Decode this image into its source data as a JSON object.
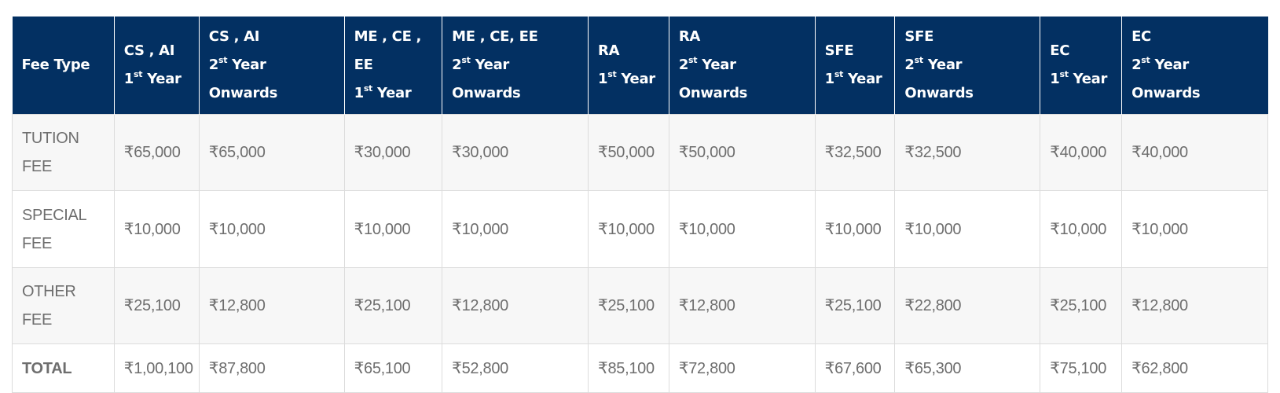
{
  "table": {
    "headers": [
      {
        "lines": [
          "Fee Type"
        ]
      },
      {
        "lines": [
          "CS , AI"
        ],
        "ord_num": "1",
        "ord_suffix": "st",
        "ord_rest": " Year"
      },
      {
        "lines": [
          "CS , AI"
        ],
        "ord_num": "2",
        "ord_suffix": "st",
        "ord_rest": " Year",
        "tail": "Onwards"
      },
      {
        "lines": [
          "ME , CE ,",
          "EE"
        ],
        "ord_num": "1",
        "ord_suffix": "st",
        "ord_rest": " Year"
      },
      {
        "lines": [
          "ME , CE, EE"
        ],
        "ord_num": "2",
        "ord_suffix": "st",
        "ord_rest": " Year",
        "tail": "Onwards"
      },
      {
        "lines": [
          "RA"
        ],
        "ord_num": "1",
        "ord_suffix": "st",
        "ord_rest": " Year"
      },
      {
        "lines": [
          "RA"
        ],
        "ord_num": "2",
        "ord_suffix": "st",
        "ord_rest": " Year",
        "tail": "Onwards"
      },
      {
        "lines": [
          "SFE"
        ],
        "ord_num": "1",
        "ord_suffix": "st",
        "ord_rest": " Year"
      },
      {
        "lines": [
          "SFE"
        ],
        "ord_num": "2",
        "ord_suffix": "st",
        "ord_rest": " Year",
        "tail": "Onwards"
      },
      {
        "lines": [
          "EC"
        ],
        "ord_num": "1",
        "ord_suffix": "st",
        "ord_rest": " Year"
      },
      {
        "lines": [
          "EC"
        ],
        "ord_num": "2",
        "ord_suffix": "st",
        "ord_rest": " Year",
        "tail": "Onwards"
      }
    ],
    "rows": [
      {
        "label": "TUTION FEE",
        "values": [
          "₹65,000",
          "₹65,000",
          "₹30,000",
          "₹30,000",
          "₹50,000",
          "₹50,000",
          "₹32,500",
          "₹32,500",
          "₹40,000",
          "₹40,000"
        ]
      },
      {
        "label": "SPECIAL FEE",
        "values": [
          "₹10,000",
          "₹10,000",
          "₹10,000",
          "₹10,000",
          "₹10,000",
          "₹10,000",
          "₹10,000",
          "₹10,000",
          "₹10,000",
          "₹10,000"
        ]
      },
      {
        "label": "OTHER FEE",
        "values": [
          "₹25,100",
          "₹12,800",
          "₹25,100",
          "₹12,800",
          "₹25,100",
          "₹12,800",
          "₹25,100",
          "₹22,800",
          "₹25,100",
          "₹12,800"
        ]
      },
      {
        "label": "TOTAL",
        "values": [
          "₹1,00,100",
          "₹87,800",
          "₹65,100",
          "₹52,800",
          "₹85,100",
          "₹72,800",
          "₹67,600",
          "₹65,300",
          "₹75,100",
          "₹62,800"
        ]
      }
    ]
  },
  "colors": {
    "header_bg": "#033062",
    "header_text": "#ffffff",
    "cell_text": "#6e6e6e",
    "stripe_bg": "#f7f7f7",
    "border": "#dcdcdc"
  }
}
